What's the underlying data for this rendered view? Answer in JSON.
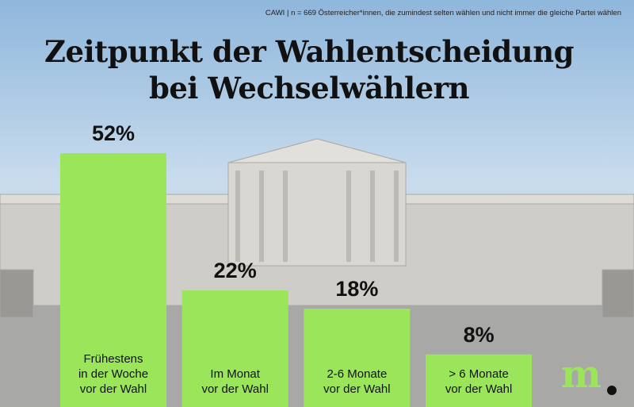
{
  "chart_data": {
    "type": "bar",
    "title": "Zeitpunkt der Wahlentscheidung\nbei Wechselwählern",
    "source": "CAWI | n = 669 Österreicher*innen, die zumindest selten wählen und nicht immer die gleiche Partei wählen",
    "categories": [
      "Frühestens\nin der Woche\nvor der Wahl",
      "Im Monat\nvor der Wahl",
      "2-6 Monate\nvor der Wahl",
      "> 6 Monate\nvor der Wahl"
    ],
    "values": [
      52,
      22,
      18,
      8
    ],
    "value_labels": [
      "52%",
      "22%",
      "18%",
      "8%"
    ],
    "color": "#9be55a",
    "ylim": [
      -3.5,
      85
    ],
    "logo": "m"
  }
}
